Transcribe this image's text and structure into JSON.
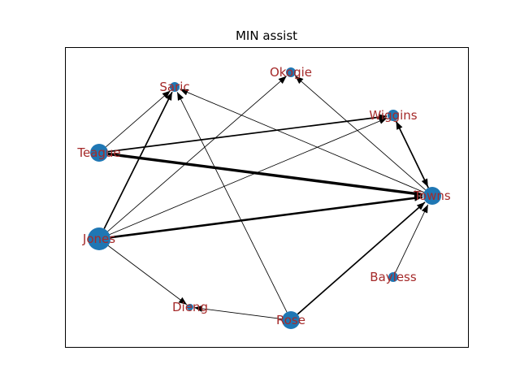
{
  "title": "MIN assist",
  "colors": {
    "node": "#1f77b4",
    "label": "#a52a2a",
    "edge": "#000000",
    "frame": "#000000",
    "background": "#ffffff"
  },
  "nodes": [
    {
      "id": "Saric",
      "label": "Saric"
    },
    {
      "id": "Okogie",
      "label": "Okogie"
    },
    {
      "id": "Wiggins",
      "label": "Wiggins"
    },
    {
      "id": "Teague",
      "label": "Teague"
    },
    {
      "id": "Towns",
      "label": "Towns"
    },
    {
      "id": "Jones",
      "label": "Jones"
    },
    {
      "id": "Bayless",
      "label": "Bayless"
    },
    {
      "id": "Dieng",
      "label": "Dieng"
    },
    {
      "id": "Rose",
      "label": "Rose"
    }
  ],
  "edges": [
    {
      "from": "Teague",
      "to": "Towns",
      "weight": 4
    },
    {
      "from": "Jones",
      "to": "Towns",
      "weight": 3
    },
    {
      "from": "Teague",
      "to": "Wiggins",
      "weight": 2
    },
    {
      "from": "Towns",
      "to": "Wiggins",
      "weight": 2
    },
    {
      "from": "Rose",
      "to": "Towns",
      "weight": 2
    },
    {
      "from": "Jones",
      "to": "Saric",
      "weight": 2
    },
    {
      "from": "Teague",
      "to": "Saric",
      "weight": 1
    },
    {
      "from": "Jones",
      "to": "Okogie",
      "weight": 1
    },
    {
      "from": "Jones",
      "to": "Wiggins",
      "weight": 1
    },
    {
      "from": "Jones",
      "to": "Dieng",
      "weight": 1
    },
    {
      "from": "Towns",
      "to": "Okogie",
      "weight": 1
    },
    {
      "from": "Towns",
      "to": "Saric",
      "weight": 1
    },
    {
      "from": "Wiggins",
      "to": "Towns",
      "weight": 1
    },
    {
      "from": "Bayless",
      "to": "Towns",
      "weight": 1
    },
    {
      "from": "Rose",
      "to": "Saric",
      "weight": 1
    },
    {
      "from": "Rose",
      "to": "Dieng",
      "weight": 1
    }
  ]
}
